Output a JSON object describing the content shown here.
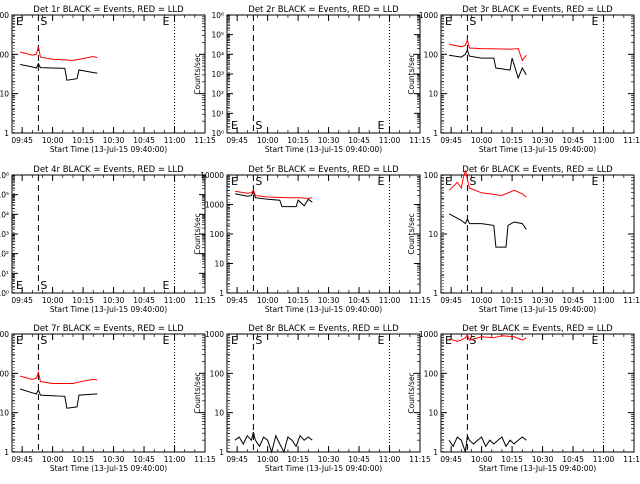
{
  "figure": {
    "x_label": "Start Time (13-Jul-15 09:40:00)",
    "y_label": "Counts/sec",
    "x_ticks": [
      "09:45",
      "10:00",
      "10:15",
      "10:30",
      "10:45",
      "11:00",
      "11:15"
    ],
    "x_range_minutes": [
      0,
      95
    ],
    "marker_s_minute": 13,
    "marker_e_minutes": [
      80,
      95
    ],
    "colors": {
      "events": "#000000",
      "lld": "#ff0000",
      "axes": "#000000"
    }
  },
  "chart_data": [
    {
      "type": "line",
      "title": "Det 1r BLACK = Events, RED = LLD",
      "y_scale": "log",
      "ylim": [
        1,
        1000
      ],
      "y_ticks": [
        "1",
        "10",
        "100",
        "1000"
      ],
      "series": [
        {
          "name": "Events",
          "color": "black",
          "x": [
            4,
            10,
            12,
            13,
            14,
            20,
            26,
            27,
            32,
            33,
            42
          ],
          "y": [
            55,
            48,
            45,
            58,
            46,
            45,
            44,
            22,
            24,
            40,
            33
          ]
        },
        {
          "name": "LLD",
          "color": "red",
          "x": [
            4,
            10,
            12,
            13,
            14,
            20,
            30,
            36,
            40,
            42
          ],
          "y": [
            115,
            95,
            100,
            160,
            85,
            75,
            70,
            80,
            88,
            82
          ]
        }
      ]
    },
    {
      "type": "line",
      "title": "Det 2r BLACK = Events, RED = LLD",
      "y_scale": "log",
      "ylim": [
        1,
        1000000
      ],
      "y_ticks": [
        "10⁰",
        "10¹",
        "10²",
        "10³",
        "10⁴",
        "10⁵",
        "10⁶"
      ],
      "series": []
    },
    {
      "type": "line",
      "title": "Det 3r BLACK = Events, RED = LLD",
      "y_scale": "log",
      "ylim": [
        1,
        1000
      ],
      "y_ticks": [
        "1",
        "10",
        "100",
        "1000"
      ],
      "series": [
        {
          "name": "Events",
          "color": "black",
          "x": [
            4,
            10,
            12,
            13,
            14,
            20,
            26,
            27,
            34,
            35,
            38,
            40,
            42
          ],
          "y": [
            95,
            85,
            100,
            130,
            90,
            80,
            80,
            45,
            40,
            80,
            25,
            45,
            30
          ]
        },
        {
          "name": "LLD",
          "color": "red",
          "x": [
            4,
            10,
            12,
            13,
            14,
            20,
            34,
            38,
            40,
            42
          ],
          "y": [
            180,
            155,
            170,
            230,
            145,
            140,
            135,
            140,
            70,
            95
          ]
        }
      ]
    },
    {
      "type": "line",
      "title": "Det 4r BLACK = Events, RED = LLD",
      "y_scale": "log",
      "ylim": [
        1,
        1000000
      ],
      "y_ticks": [
        "10⁰",
        "10¹",
        "10²",
        "10³",
        "10⁴",
        "10⁵",
        "10⁶"
      ],
      "series": []
    },
    {
      "type": "line",
      "title": "Det 5r BLACK = Events, RED = LLD",
      "y_scale": "log",
      "ylim": [
        1,
        10000
      ],
      "y_ticks": [
        "1",
        "10",
        "100",
        "1000",
        "10000"
      ],
      "series": [
        {
          "name": "Events",
          "color": "black",
          "x": [
            4,
            10,
            12,
            13,
            14,
            20,
            26,
            27,
            34,
            35,
            38,
            40,
            42
          ],
          "y": [
            2300,
            1900,
            2000,
            2700,
            1700,
            1500,
            1400,
            850,
            850,
            1400,
            900,
            1500,
            1200
          ]
        },
        {
          "name": "LLD",
          "color": "red",
          "x": [
            4,
            10,
            12,
            13,
            14,
            20,
            30,
            36,
            40,
            42
          ],
          "y": [
            2800,
            2400,
            2500,
            3100,
            2000,
            1800,
            1700,
            1700,
            1600,
            1700
          ]
        }
      ]
    },
    {
      "type": "line",
      "title": "Det 6r BLACK = Events, RED = LLD",
      "y_scale": "log",
      "ylim": [
        1,
        100
      ],
      "y_ticks": [
        "1",
        "10",
        "100"
      ],
      "series": [
        {
          "name": "Events",
          "color": "black",
          "x": [
            4,
            10,
            12,
            13,
            14,
            20,
            26,
            27,
            32,
            33,
            36,
            40,
            42
          ],
          "y": [
            22,
            17,
            15,
            18,
            15,
            15,
            14,
            6,
            6,
            14,
            16,
            15,
            12
          ]
        },
        {
          "name": "LLD",
          "color": "red",
          "x": [
            4,
            8,
            10,
            11,
            12,
            13,
            14,
            20,
            30,
            36,
            40,
            42
          ],
          "y": [
            55,
            75,
            60,
            90,
            120,
            85,
            60,
            50,
            45,
            55,
            48,
            42
          ]
        }
      ]
    },
    {
      "type": "line",
      "title": "Det 7r BLACK = Events, RED = LLD",
      "y_scale": "log",
      "ylim": [
        1,
        1000
      ],
      "y_ticks": [
        "1",
        "10",
        "100",
        "1000"
      ],
      "series": [
        {
          "name": "Events",
          "color": "black",
          "x": [
            4,
            10,
            12,
            13,
            14,
            20,
            26,
            27,
            32,
            33,
            42
          ],
          "y": [
            40,
            32,
            30,
            38,
            28,
            27,
            26,
            13,
            14,
            28,
            30
          ]
        },
        {
          "name": "LLD",
          "color": "red",
          "x": [
            4,
            10,
            12,
            13,
            14,
            20,
            30,
            36,
            40,
            42
          ],
          "y": [
            85,
            70,
            75,
            105,
            62,
            55,
            55,
            65,
            70,
            68
          ]
        }
      ]
    },
    {
      "type": "line",
      "title": "Det 8r BLACK = Events, RED = LLD",
      "y_scale": "log",
      "ylim": [
        1,
        1000
      ],
      "y_ticks": [
        "1",
        "10",
        "100",
        "1000"
      ],
      "series": [
        {
          "name": "Events",
          "color": "black",
          "x": [
            4,
            6,
            8,
            10,
            12,
            13,
            14,
            16,
            18,
            20,
            22,
            24,
            26,
            28,
            30,
            32,
            34,
            36,
            38,
            40,
            42
          ],
          "y": [
            2,
            2.4,
            1.6,
            2.6,
            2,
            3.2,
            2,
            1.4,
            2.4,
            2,
            1,
            2.6,
            1.6,
            1,
            2.4,
            2,
            1.4,
            2.6,
            2,
            2.4,
            2
          ]
        },
        {
          "name": "LLD",
          "color": "red",
          "x": [],
          "y": []
        }
      ]
    },
    {
      "type": "line",
      "title": "Det 9r BLACK = Events, RED = LLD",
      "y_scale": "log",
      "ylim": [
        1,
        1000
      ],
      "y_ticks": [
        "1",
        "10",
        "100",
        "1000"
      ],
      "series": [
        {
          "name": "Events",
          "color": "black",
          "x": [
            4,
            6,
            8,
            10,
            12,
            13,
            14,
            16,
            18,
            20,
            22,
            24,
            26,
            28,
            30,
            32,
            34,
            36,
            38,
            40,
            42
          ],
          "y": [
            2,
            1.4,
            2.4,
            2,
            1,
            2.6,
            2,
            1.6,
            2,
            2.4,
            1.4,
            2,
            1.6,
            2,
            2.4,
            1.4,
            2,
            1.6,
            2,
            2.4,
            2
          ]
        },
        {
          "name": "LLD",
          "color": "red",
          "x": [
            4,
            8,
            10,
            12,
            13,
            14,
            20,
            26,
            30,
            36,
            40,
            42
          ],
          "y": [
            750,
            650,
            700,
            800,
            950,
            700,
            850,
            800,
            900,
            850,
            700,
            800
          ]
        }
      ]
    }
  ]
}
